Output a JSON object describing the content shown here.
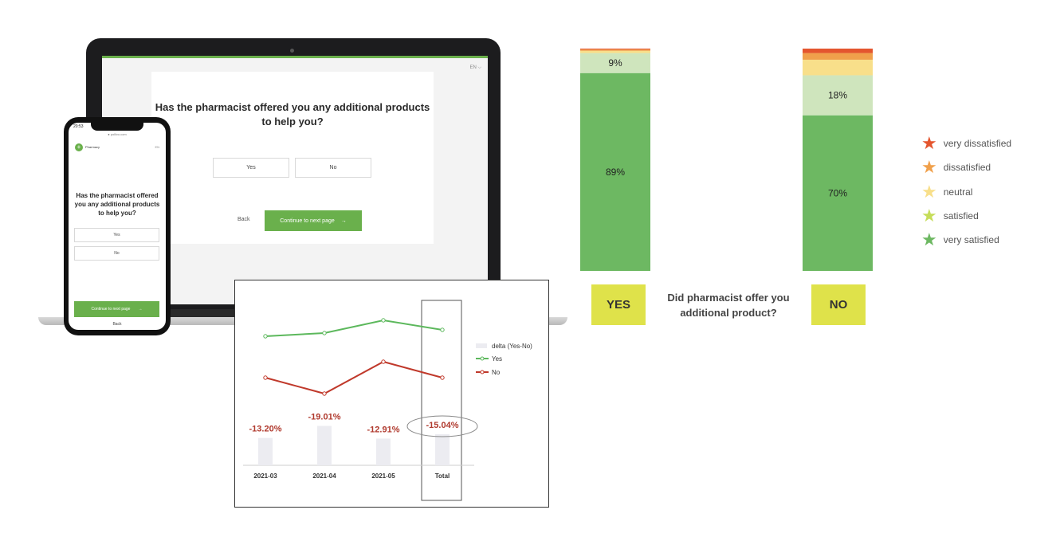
{
  "laptop": {
    "lang": "EN ⌵",
    "question": "Has the pharmacist offered you any additional products to help you?",
    "option_yes": "Yes",
    "option_no": "No",
    "back": "Back",
    "continue": "Continue to next page",
    "continue_arrow": "→"
  },
  "phone": {
    "status_time": "20:53",
    "url": "● pollivo.com",
    "logo_glyph": "+",
    "brand": "Pharmacy",
    "lang": "EN",
    "question": "Has the pharmacist offered you any additional products to help you?",
    "option_yes": "Yes",
    "option_no": "No",
    "continue": "Continue to next page",
    "continue_arrow": "→",
    "back": "Back"
  },
  "chart_data": [
    {
      "type": "line",
      "categories": [
        "2021-03",
        "2021-04",
        "2021-05",
        "Total"
      ],
      "series": [
        {
          "name": "Yes",
          "color": "#5cb85c",
          "values": [
            0.8,
            0.81,
            0.85,
            0.82
          ]
        },
        {
          "name": "No",
          "color": "#c0392b",
          "values": [
            0.67,
            0.62,
            0.72,
            0.67
          ]
        },
        {
          "name": "delta (Yes-No)",
          "color": "#ececf1",
          "kind": "bar",
          "values": [
            -13.2,
            -19.01,
            -12.91,
            -15.04
          ]
        }
      ],
      "delta_labels": [
        "-13.20%",
        "-19.01%",
        "-12.91%",
        "-15.04%"
      ],
      "legend": [
        "delta (Yes-No)",
        "Yes",
        "No"
      ],
      "highlight_category": "Total",
      "legend_position": "right"
    },
    {
      "type": "bar",
      "stacked": true,
      "categories": [
        "YES",
        "NO"
      ],
      "caption": "Did pharmacist offer you additional product?",
      "segment_order": [
        "very satisfied",
        "satisfied",
        "neutral",
        "dissatisfied",
        "very dissatisfied"
      ],
      "series": [
        {
          "name": "very satisfied",
          "color": "#6db862",
          "values": [
            89,
            70
          ]
        },
        {
          "name": "satisfied",
          "color": "#cfe5bd",
          "values": [
            9,
            18
          ]
        },
        {
          "name": "neutral",
          "color": "#f8df8a",
          "values": [
            1,
            7
          ]
        },
        {
          "name": "dissatisfied",
          "color": "#f0a04b",
          "values": [
            0.6,
            3
          ]
        },
        {
          "name": "very dissatisfied",
          "color": "#e4552e",
          "values": [
            0.4,
            2
          ]
        }
      ],
      "data_labels": {
        "YES": [
          "89%",
          "9%"
        ],
        "NO": [
          "70%",
          "18%"
        ]
      }
    }
  ],
  "legend": {
    "items": [
      {
        "label": "very dissatisfied",
        "color": "#e4552e",
        "icon": "star-icon"
      },
      {
        "label": "dissatisfied",
        "color": "#f0a04b",
        "icon": "star-icon"
      },
      {
        "label": "neutral",
        "color": "#f8df8a",
        "icon": "star-icon"
      },
      {
        "label": "satisfied",
        "color": "#c6dd5a",
        "icon": "star-icon"
      },
      {
        "label": "very satisfied",
        "color": "#6db862",
        "icon": "star-icon"
      }
    ]
  }
}
